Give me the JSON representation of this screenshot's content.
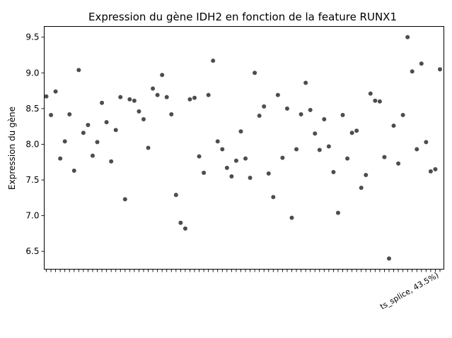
{
  "chart_data": {
    "type": "scatter",
    "title": "Expression du gène IDH2 en fonction de la feature RUNX1",
    "xlabel": "",
    "ylabel": "Expression du gène",
    "ylim": [
      6.25,
      9.65
    ],
    "yticks": [
      6.5,
      7.0,
      7.5,
      8.0,
      8.5,
      9.0,
      9.5
    ],
    "ytick_labels": [
      "6.5",
      "7.0",
      "7.5",
      "8.0",
      "8.5",
      "9.0",
      "9.5"
    ],
    "grid": false,
    "legend": "none",
    "marker_color": "#3a3a3a",
    "visible_xtick_label": "ts_splice, 43.5%)",
    "y": [
      8.67,
      8.41,
      8.74,
      7.8,
      8.04,
      8.42,
      7.63,
      9.04,
      8.16,
      8.27,
      7.84,
      8.03,
      8.58,
      8.31,
      7.76,
      8.2,
      8.66,
      7.23,
      8.63,
      8.61,
      8.46,
      8.35,
      7.95,
      8.78,
      8.69,
      8.97,
      8.66,
      8.42,
      7.29,
      6.9,
      6.82,
      8.63,
      8.65,
      7.83,
      7.6,
      8.69,
      9.17,
      8.04,
      7.93,
      7.67,
      7.55,
      7.77,
      8.18,
      7.8,
      7.53,
      9.0,
      8.4,
      8.53,
      7.59,
      7.26,
      8.69,
      7.81,
      8.5,
      6.97,
      7.93,
      8.42,
      8.86,
      8.48,
      8.15,
      7.92,
      8.35,
      7.97,
      7.61,
      7.04,
      8.41,
      7.8,
      8.16,
      8.19,
      7.39,
      7.57,
      8.71,
      8.61,
      8.6,
      7.82,
      6.4,
      8.26,
      7.73,
      8.41,
      9.5,
      9.02,
      7.93,
      9.13,
      8.03,
      7.62,
      7.65,
      9.05
    ]
  }
}
